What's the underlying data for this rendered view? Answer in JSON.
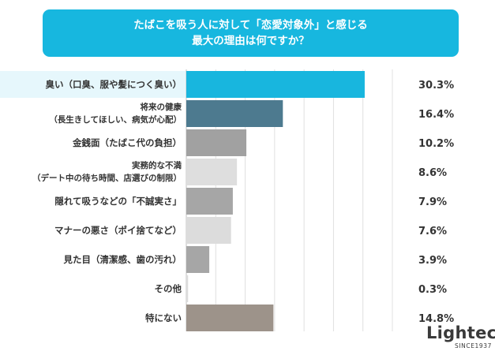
{
  "title": {
    "line1": "たばこを吸う人に対して「恋愛対象外」と感じる",
    "line2": "最大の理由は何ですか？"
  },
  "logo": {
    "name": "Lightec",
    "sub": "SINCE1937"
  },
  "chart_data": {
    "type": "bar",
    "orientation": "horizontal",
    "categories": [
      [
        "臭い（口臭、服や髪につく臭い）"
      ],
      [
        "将来の健康",
        "（長生きしてほしい、病気が心配）"
      ],
      [
        "金銭面（たばこ代の負担）"
      ],
      [
        "実務的な不満",
        "（デート中の待ち時間、店選びの制限）"
      ],
      [
        "隠れて吸うなどの「不誠実さ」"
      ],
      [
        "マナーの悪さ（ポイ捨てなど）"
      ],
      [
        "見た目（清潔感、歯の汚れ）"
      ],
      [
        "その他"
      ],
      [
        "特にない"
      ]
    ],
    "values": [
      30.3,
      16.4,
      10.2,
      8.6,
      7.9,
      7.6,
      3.9,
      0.3,
      14.8
    ],
    "value_labels": [
      "30.3%",
      "16.4%",
      "10.2%",
      "8.6%",
      "7.9%",
      "7.6%",
      "3.9%",
      "0.3%",
      "14.8%"
    ],
    "colors": [
      "#18b6de",
      "#4d7a8f",
      "#a1a1a1",
      "#dedede",
      "#a6a6a6",
      "#dcdcdc",
      "#a6a6a6",
      "#dcdcdc",
      "#9d938a"
    ],
    "label_colors": [
      "#18b6de",
      "#4d7a8f",
      "#333333",
      "#333333",
      "#333333",
      "#333333",
      "#333333",
      "#333333",
      "#333333"
    ],
    "xlim": [
      0,
      35
    ],
    "grid": true
  }
}
